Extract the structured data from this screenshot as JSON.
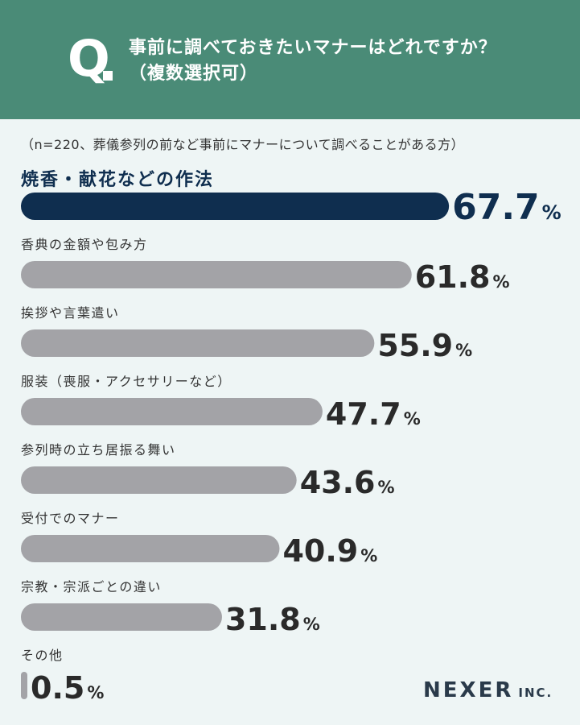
{
  "header": {
    "q_label": "Q",
    "question_line1": "事前に調べておきたいマナーはどれですか？",
    "question_line2": "（複数選択可）"
  },
  "note": "（n=220、葬儀参列の前など事前にマナーについて調べることがある方）",
  "logo": {
    "main": "NEXER",
    "sub": "INC."
  },
  "colors": {
    "header": "#4a8b77",
    "highlight": "#0f2e4f",
    "bar": "#a3a3a7",
    "background": "#eef5f5"
  },
  "chart_data": {
    "type": "bar",
    "orientation": "horizontal",
    "unit": "%",
    "categories": [
      "焼香・献花などの作法",
      "香典の金額や包み方",
      "挨拶や言葉遣い",
      "服装（喪服・アクセサリーなど）",
      "参列時の立ち居振る舞い",
      "受付でのマナー",
      "宗教・宗派ごとの違い",
      "その他"
    ],
    "values": [
      67.7,
      61.8,
      55.9,
      47.7,
      43.6,
      40.9,
      31.8,
      0.5
    ],
    "value_labels": [
      "67.7",
      "61.8",
      "55.9",
      "47.7",
      "43.6",
      "40.9",
      "31.8",
      "0.5"
    ],
    "highlight_index": 0
  }
}
